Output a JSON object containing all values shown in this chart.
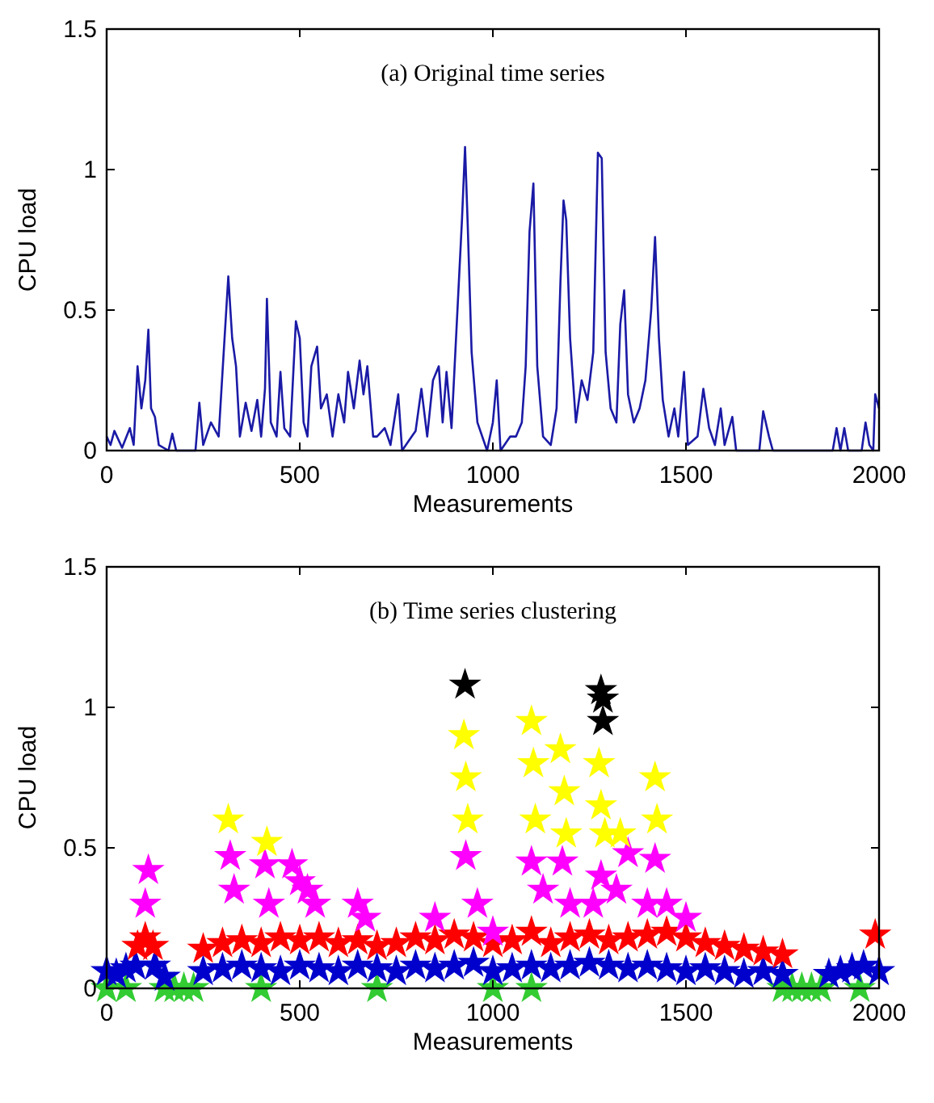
{
  "chart_data": [
    {
      "type": "line",
      "title": "(a) Original time series",
      "xlabel": "Measurements",
      "ylabel": "CPU load",
      "xlim": [
        0,
        2000
      ],
      "ylim": [
        0,
        1.5
      ],
      "xticks": [
        0,
        500,
        1000,
        1500,
        2000
      ],
      "yticks": [
        0,
        0.5,
        1,
        1.5
      ],
      "marker": "none",
      "line_style": "solid",
      "series": [
        {
          "color": "#1a1aa6",
          "x": [
            0,
            10,
            20,
            40,
            60,
            70,
            80,
            90,
            100,
            108,
            115,
            125,
            135,
            160,
            170,
            180,
            230,
            240,
            250,
            270,
            290,
            300,
            315,
            325,
            335,
            345,
            360,
            375,
            390,
            400,
            410,
            415,
            425,
            440,
            450,
            460,
            475,
            490,
            500,
            510,
            520,
            530,
            545,
            555,
            570,
            585,
            600,
            615,
            625,
            640,
            655,
            665,
            675,
            690,
            700,
            720,
            735,
            755,
            765,
            790,
            800,
            815,
            830,
            845,
            860,
            870,
            880,
            893,
            920,
            928,
            935,
            945,
            960,
            985,
            1000,
            1010,
            1020,
            1045,
            1060,
            1075,
            1085,
            1095,
            1105,
            1115,
            1130,
            1150,
            1165,
            1175,
            1183,
            1190,
            1200,
            1215,
            1230,
            1245,
            1260,
            1272,
            1282,
            1292,
            1305,
            1320,
            1330,
            1340,
            1350,
            1365,
            1380,
            1395,
            1410,
            1420,
            1430,
            1440,
            1455,
            1470,
            1480,
            1495,
            1505,
            1530,
            1545,
            1560,
            1575,
            1590,
            1600,
            1620,
            1630,
            1690,
            1700,
            1715,
            1725,
            1880,
            1890,
            1900,
            1910,
            1920,
            1955,
            1965,
            1975,
            1985,
            1990,
            2000
          ],
          "values": [
            0.05,
            0.02,
            0.07,
            0.01,
            0.08,
            0.02,
            0.3,
            0.15,
            0.25,
            0.43,
            0.15,
            0.12,
            0.02,
            0,
            0.06,
            0,
            0,
            0.17,
            0.02,
            0.1,
            0.05,
            0.28,
            0.62,
            0.4,
            0.3,
            0.05,
            0.17,
            0.07,
            0.18,
            0.05,
            0.22,
            0.54,
            0.1,
            0.05,
            0.28,
            0.08,
            0.05,
            0.46,
            0.4,
            0.1,
            0.05,
            0.3,
            0.37,
            0.15,
            0.2,
            0.05,
            0.2,
            0.1,
            0.28,
            0.15,
            0.32,
            0.2,
            0.3,
            0.05,
            0.05,
            0.08,
            0.02,
            0.2,
            0,
            0.05,
            0.07,
            0.22,
            0.05,
            0.25,
            0.3,
            0.1,
            0.28,
            0.08,
            0.82,
            1.08,
            0.8,
            0.35,
            0.1,
            0,
            0.1,
            0.25,
            0,
            0.05,
            0.05,
            0.1,
            0.3,
            0.78,
            0.95,
            0.3,
            0.05,
            0.02,
            0.15,
            0.6,
            0.89,
            0.82,
            0.4,
            0.1,
            0.25,
            0.18,
            0.35,
            1.06,
            1.04,
            0.35,
            0.15,
            0.1,
            0.45,
            0.57,
            0.2,
            0.1,
            0.15,
            0.25,
            0.5,
            0.76,
            0.4,
            0.18,
            0.05,
            0.15,
            0.05,
            0.28,
            0.02,
            0.05,
            0.22,
            0.08,
            0.02,
            0.15,
            0.02,
            0.12,
            0,
            0,
            0.14,
            0.05,
            0,
            0,
            0.08,
            0,
            0.08,
            0,
            0,
            0.1,
            0.02,
            0,
            0.2,
            0.15
          ]
        }
      ]
    },
    {
      "type": "scatter",
      "title": "(b) Time series clustering",
      "xlabel": "Measurements",
      "ylabel": "CPU load",
      "xlim": [
        0,
        2000
      ],
      "ylim": [
        0,
        1.5
      ],
      "xticks": [
        0,
        500,
        1000,
        1500,
        2000
      ],
      "yticks": [
        0,
        0.5,
        1,
        1.5
      ],
      "marker": "star",
      "series": [
        {
          "color": "#33cc33",
          "x": [
            0,
            50,
            150,
            175,
            200,
            225,
            400,
            700,
            1000,
            1100,
            1750,
            1775,
            1800,
            1825,
            1850,
            1950
          ],
          "values": [
            0,
            0,
            0,
            0,
            0,
            0,
            0,
            0,
            0,
            0,
            0,
            0,
            0,
            0,
            0,
            0
          ]
        },
        {
          "color": "#0000cc",
          "x": [
            0,
            25,
            50,
            75,
            125,
            150,
            250,
            300,
            350,
            400,
            450,
            500,
            550,
            600,
            650,
            700,
            750,
            800,
            850,
            900,
            950,
            1000,
            1050,
            1100,
            1150,
            1200,
            1250,
            1300,
            1350,
            1400,
            1450,
            1500,
            1550,
            1600,
            1650,
            1700,
            1750,
            1870,
            1900,
            1930,
            1960,
            2000
          ],
          "values": [
            0.06,
            0.05,
            0.07,
            0.08,
            0.08,
            0.04,
            0.06,
            0.07,
            0.08,
            0.07,
            0.06,
            0.08,
            0.07,
            0.06,
            0.08,
            0.07,
            0.06,
            0.08,
            0.07,
            0.08,
            0.09,
            0.06,
            0.07,
            0.08,
            0.07,
            0.08,
            0.09,
            0.08,
            0.07,
            0.08,
            0.07,
            0.06,
            0.07,
            0.06,
            0.05,
            0.06,
            0.05,
            0.05,
            0.06,
            0.07,
            0.08,
            0.06
          ]
        },
        {
          "color": "#ff0000",
          "x": [
            80,
            100,
            120,
            250,
            300,
            350,
            400,
            450,
            500,
            550,
            600,
            650,
            700,
            750,
            800,
            850,
            900,
            950,
            1000,
            1050,
            1100,
            1150,
            1200,
            1250,
            1300,
            1350,
            1400,
            1450,
            1500,
            1550,
            1600,
            1650,
            1700,
            1750,
            1990
          ],
          "values": [
            0.15,
            0.18,
            0.15,
            0.14,
            0.16,
            0.17,
            0.16,
            0.18,
            0.17,
            0.18,
            0.16,
            0.17,
            0.15,
            0.16,
            0.18,
            0.17,
            0.19,
            0.18,
            0.16,
            0.17,
            0.2,
            0.16,
            0.18,
            0.19,
            0.17,
            0.18,
            0.19,
            0.2,
            0.18,
            0.16,
            0.15,
            0.14,
            0.13,
            0.12,
            0.19
          ]
        },
        {
          "color": "#ff00ff",
          "x": [
            100,
            108,
            320,
            330,
            410,
            420,
            480,
            500,
            520,
            540,
            650,
            670,
            850,
            930,
            960,
            1000,
            1100,
            1130,
            1180,
            1200,
            1260,
            1280,
            1320,
            1350,
            1400,
            1420,
            1450,
            1500
          ],
          "values": [
            0.3,
            0.42,
            0.47,
            0.35,
            0.44,
            0.3,
            0.44,
            0.38,
            0.35,
            0.3,
            0.3,
            0.25,
            0.25,
            0.47,
            0.3,
            0.2,
            0.45,
            0.35,
            0.45,
            0.3,
            0.3,
            0.4,
            0.35,
            0.48,
            0.3,
            0.46,
            0.3,
            0.25
          ]
        },
        {
          "color": "#ffff00",
          "x": [
            315,
            415,
            925,
            930,
            935,
            1100,
            1105,
            1110,
            1175,
            1185,
            1190,
            1275,
            1280,
            1290,
            1330,
            1420,
            1425
          ],
          "values": [
            0.6,
            0.52,
            0.9,
            0.75,
            0.6,
            0.95,
            0.8,
            0.6,
            0.85,
            0.7,
            0.55,
            0.8,
            0.65,
            0.55,
            0.55,
            0.75,
            0.6
          ]
        },
        {
          "color": "#000000",
          "x": [
            928,
            1280,
            1285,
            1285
          ],
          "values": [
            1.08,
            1.06,
            1.03,
            0.95
          ]
        }
      ]
    }
  ]
}
